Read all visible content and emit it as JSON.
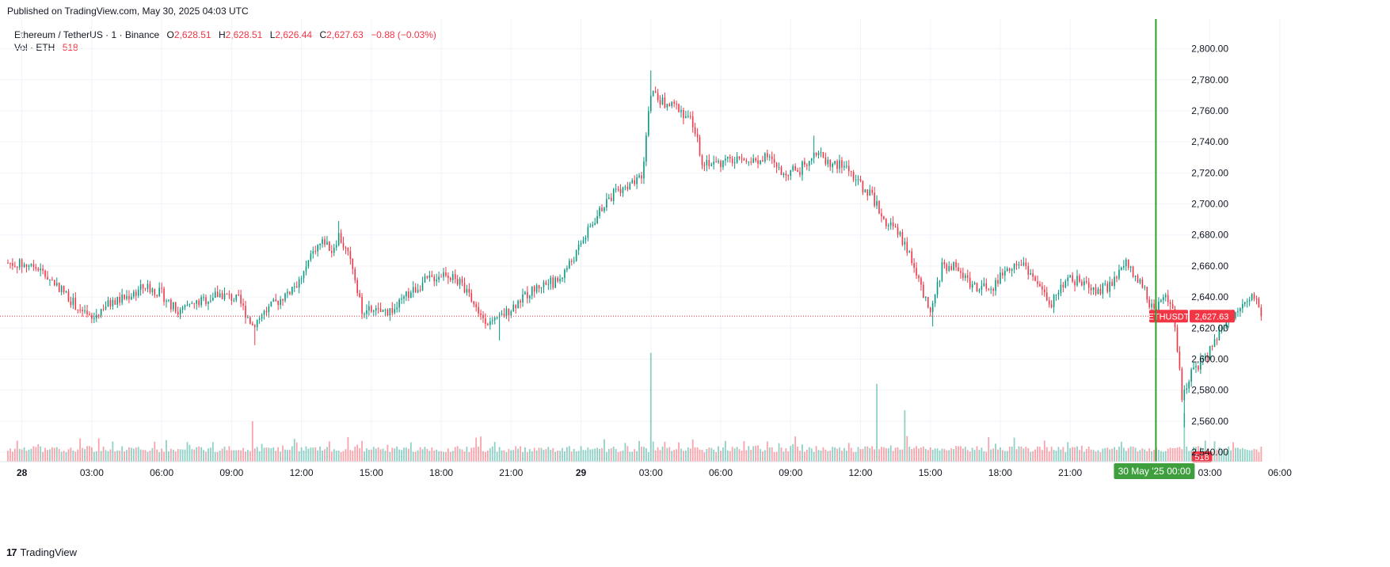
{
  "published": "Published on TradingView.com, May 30, 2025 04:03 UTC",
  "legend": {
    "symbol": "Ethereum / TetherUS · 1 · Binance",
    "o_label": "O",
    "o_value": "2,628.51",
    "h_label": "H",
    "h_value": "2,628.51",
    "l_label": "L",
    "l_value": "2,626.44",
    "c_label": "C",
    "c_value": "2,627.63",
    "change": "−0.88 (−0.03%)",
    "vol_label": "Vol · ETH",
    "vol_value": "518"
  },
  "footer": {
    "logo": "17",
    "brand": "TradingView"
  },
  "colors": {
    "up": "#089981",
    "down": "#f23645",
    "crosshair": "#2e9e2e",
    "grid": "#f0f3fa"
  },
  "chart_data": {
    "type": "candlestick",
    "symbol_tag": "ETHUSDT",
    "last_price": 2627.63,
    "last_price_label": "2,627.63",
    "volume_tag": "518",
    "crosshair_label": "30 May '25   00:00",
    "ylim": [
      2540,
      2810
    ],
    "y_ticks": [
      {
        "value": 2540,
        "label": "2,540.00"
      },
      {
        "value": 2560,
        "label": "2,560.00"
      },
      {
        "value": 2580,
        "label": "2,580.00"
      },
      {
        "value": 2600,
        "label": "2,600.00"
      },
      {
        "value": 2620,
        "label": "2,620.00"
      },
      {
        "value": 2640,
        "label": "2,640.00"
      },
      {
        "value": 2660,
        "label": "2,660.00"
      },
      {
        "value": 2680,
        "label": "2,680.00"
      },
      {
        "value": 2700,
        "label": "2,700.00"
      },
      {
        "value": 2720,
        "label": "2,720.00"
      },
      {
        "value": 2740,
        "label": "2,740.00"
      },
      {
        "value": 2760,
        "label": "2,760.00"
      },
      {
        "value": 2780,
        "label": "2,780.00"
      },
      {
        "value": 2800,
        "label": "2,800.00"
      }
    ],
    "x_ticks": [
      {
        "hour": 0,
        "label": "28",
        "bold": true
      },
      {
        "hour": 3,
        "label": "03:00"
      },
      {
        "hour": 6,
        "label": "06:00"
      },
      {
        "hour": 9,
        "label": "09:00"
      },
      {
        "hour": 12,
        "label": "12:00"
      },
      {
        "hour": 15,
        "label": "15:00"
      },
      {
        "hour": 18,
        "label": "18:00"
      },
      {
        "hour": 21,
        "label": "21:00"
      },
      {
        "hour": 24,
        "label": "29",
        "bold": true
      },
      {
        "hour": 27,
        "label": "03:00"
      },
      {
        "hour": 30,
        "label": "06:00"
      },
      {
        "hour": 33,
        "label": "09:00"
      },
      {
        "hour": 36,
        "label": "12:00"
      },
      {
        "hour": 39,
        "label": "15:00"
      },
      {
        "hour": 42,
        "label": "18:00"
      },
      {
        "hour": 45,
        "label": "21:00"
      },
      {
        "hour": 51,
        "label": "03:00"
      },
      {
        "hour": 54,
        "label": "06:00"
      }
    ],
    "x_range_hours": [
      -0.6,
      55.5
    ],
    "crosshair_hour": 48,
    "price_path": [
      [
        -0.6,
        2662
      ],
      [
        0.5,
        2660
      ],
      [
        1.5,
        2648
      ],
      [
        2.0,
        2640
      ],
      [
        2.7,
        2628
      ],
      [
        3.0,
        2625
      ],
      [
        3.5,
        2634
      ],
      [
        4.5,
        2640
      ],
      [
        5.3,
        2647
      ],
      [
        6.0,
        2642
      ],
      [
        6.7,
        2630
      ],
      [
        7.5,
        2636
      ],
      [
        8.5,
        2642
      ],
      [
        9.3,
        2638
      ],
      [
        9.9,
        2622
      ],
      [
        10.4,
        2630
      ],
      [
        11.2,
        2640
      ],
      [
        12.0,
        2652
      ],
      [
        12.6,
        2672
      ],
      [
        13.0,
        2676
      ],
      [
        13.3,
        2670
      ],
      [
        13.6,
        2680
      ],
      [
        14.2,
        2660
      ],
      [
        14.6,
        2632
      ],
      [
        15.3,
        2630
      ],
      [
        16.0,
        2632
      ],
      [
        16.6,
        2642
      ],
      [
        17.3,
        2650
      ],
      [
        18.2,
        2656
      ],
      [
        19.0,
        2646
      ],
      [
        19.6,
        2630
      ],
      [
        20.2,
        2622
      ],
      [
        20.8,
        2630
      ],
      [
        21.5,
        2640
      ],
      [
        22.3,
        2648
      ],
      [
        23.0,
        2650
      ],
      [
        23.8,
        2668
      ],
      [
        24.4,
        2685
      ],
      [
        25.0,
        2700
      ],
      [
        25.6,
        2710
      ],
      [
        26.2,
        2712
      ],
      [
        26.6,
        2716
      ],
      [
        27.0,
        2772
      ],
      [
        27.6,
        2764
      ],
      [
        28.2,
        2762
      ],
      [
        28.8,
        2752
      ],
      [
        29.2,
        2728
      ],
      [
        29.8,
        2726
      ],
      [
        30.5,
        2728
      ],
      [
        31.2,
        2726
      ],
      [
        32.0,
        2730
      ],
      [
        32.6,
        2720
      ],
      [
        33.4,
        2722
      ],
      [
        34.0,
        2734
      ],
      [
        34.7,
        2726
      ],
      [
        35.4,
        2724
      ],
      [
        36.0,
        2712
      ],
      [
        36.5,
        2705
      ],
      [
        37.0,
        2690
      ],
      [
        37.6,
        2682
      ],
      [
        38.2,
        2665
      ],
      [
        38.6,
        2645
      ],
      [
        39.0,
        2628
      ],
      [
        39.5,
        2660
      ],
      [
        40.0,
        2660
      ],
      [
        40.8,
        2648
      ],
      [
        41.6,
        2644
      ],
      [
        42.3,
        2660
      ],
      [
        43.0,
        2662
      ],
      [
        43.6,
        2648
      ],
      [
        44.2,
        2636
      ],
      [
        44.8,
        2652
      ],
      [
        45.5,
        2650
      ],
      [
        46.2,
        2644
      ],
      [
        46.8,
        2648
      ],
      [
        47.4,
        2662
      ],
      [
        48.0,
        2650
      ],
      [
        48.6,
        2630
      ],
      [
        49.0,
        2640
      ],
      [
        49.4,
        2634
      ],
      [
        49.8,
        2576
      ],
      [
        50.2,
        2592
      ],
      [
        50.8,
        2600
      ],
      [
        51.4,
        2618
      ],
      [
        52.0,
        2628
      ],
      [
        52.5,
        2640
      ],
      [
        53.0,
        2638
      ],
      [
        53.3,
        2627.63
      ]
    ],
    "notable_highs": [
      [
        27.0,
        2786
      ],
      [
        13.6,
        2689
      ],
      [
        34.0,
        2744
      ]
    ],
    "notable_lows": [
      [
        49.9,
        2556
      ],
      [
        10.0,
        2609
      ],
      [
        20.5,
        2612
      ],
      [
        39.1,
        2621
      ]
    ],
    "volume_spikes": [
      [
        27.0,
        2604
      ],
      [
        49.9,
        2565
      ],
      [
        36.7,
        2584
      ],
      [
        37.9,
        2567
      ],
      [
        9.9,
        2560
      ]
    ]
  }
}
